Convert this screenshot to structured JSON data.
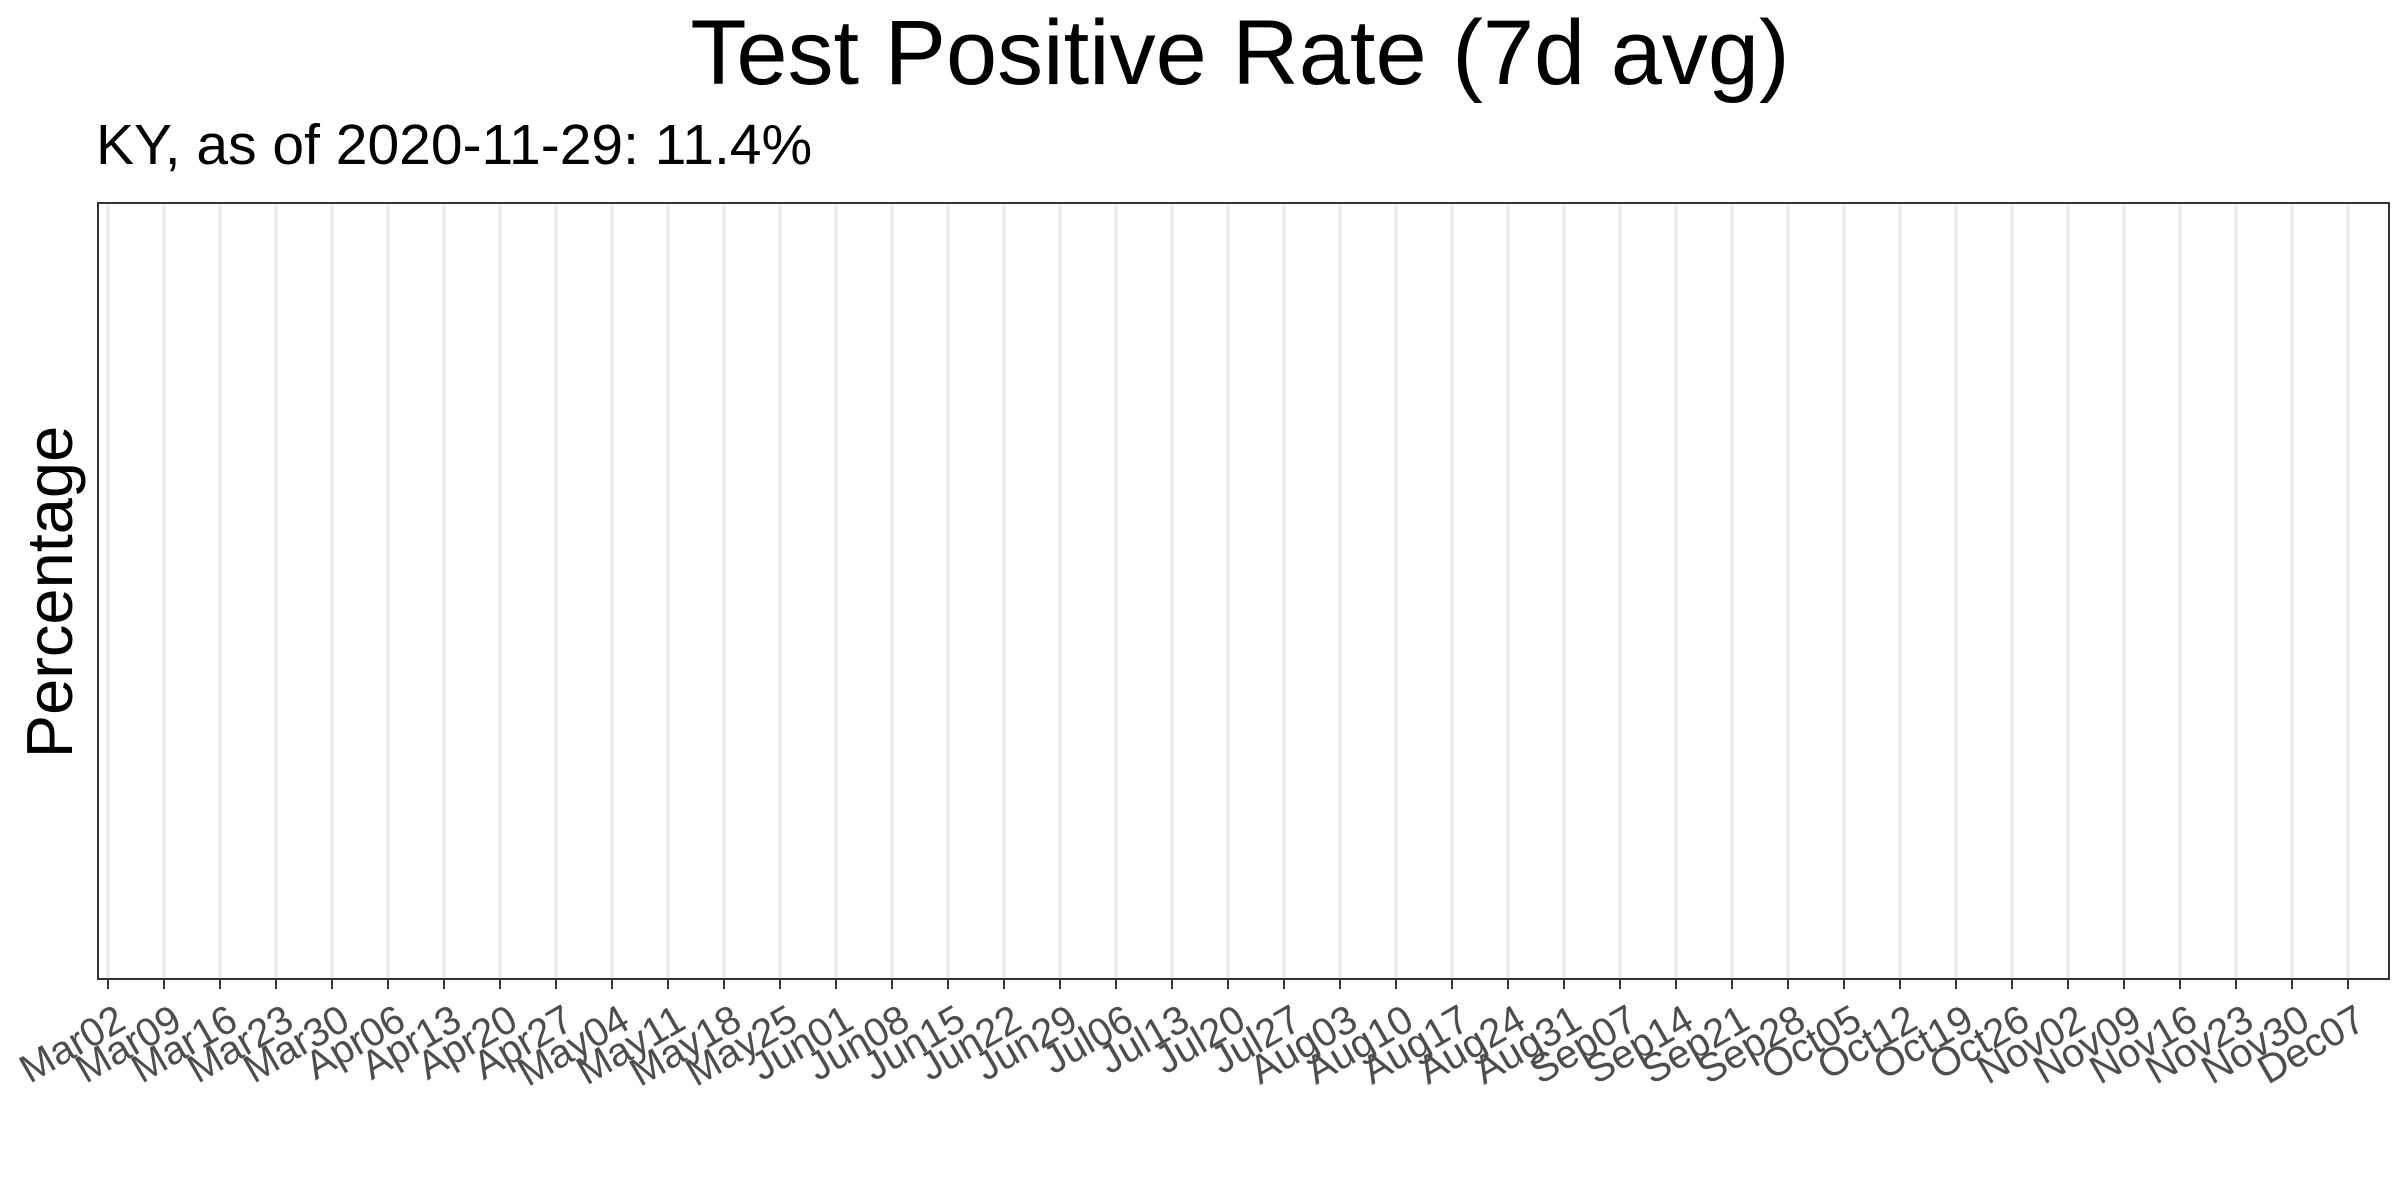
{
  "chart_data": {
    "type": "line",
    "title": "Test Positive Rate (7d avg)",
    "subtitle": "KY, as of 2020-11-29:  11.4%",
    "xlabel": "",
    "ylabel": "Percentage",
    "ylabel_color": "#cc2a1a",
    "grid": true,
    "legend": "none",
    "categories": [
      "Mar02",
      "Mar09",
      "Mar16",
      "Mar23",
      "Mar30",
      "Apr06",
      "Apr13",
      "Apr20",
      "Apr27",
      "May04",
      "May11",
      "May18",
      "May25",
      "Jun01",
      "Jun08",
      "Jun15",
      "Jun22",
      "Jun29",
      "Jul06",
      "Jul13",
      "Jul20",
      "Jul27",
      "Aug03",
      "Aug10",
      "Aug17",
      "Aug24",
      "Aug31",
      "Sep07",
      "Sep14",
      "Sep21",
      "Sep28",
      "Oct05",
      "Oct12",
      "Oct19",
      "Oct26",
      "Nov02",
      "Nov09",
      "Nov16",
      "Nov23",
      "Nov30",
      "Dec07"
    ],
    "series": []
  }
}
